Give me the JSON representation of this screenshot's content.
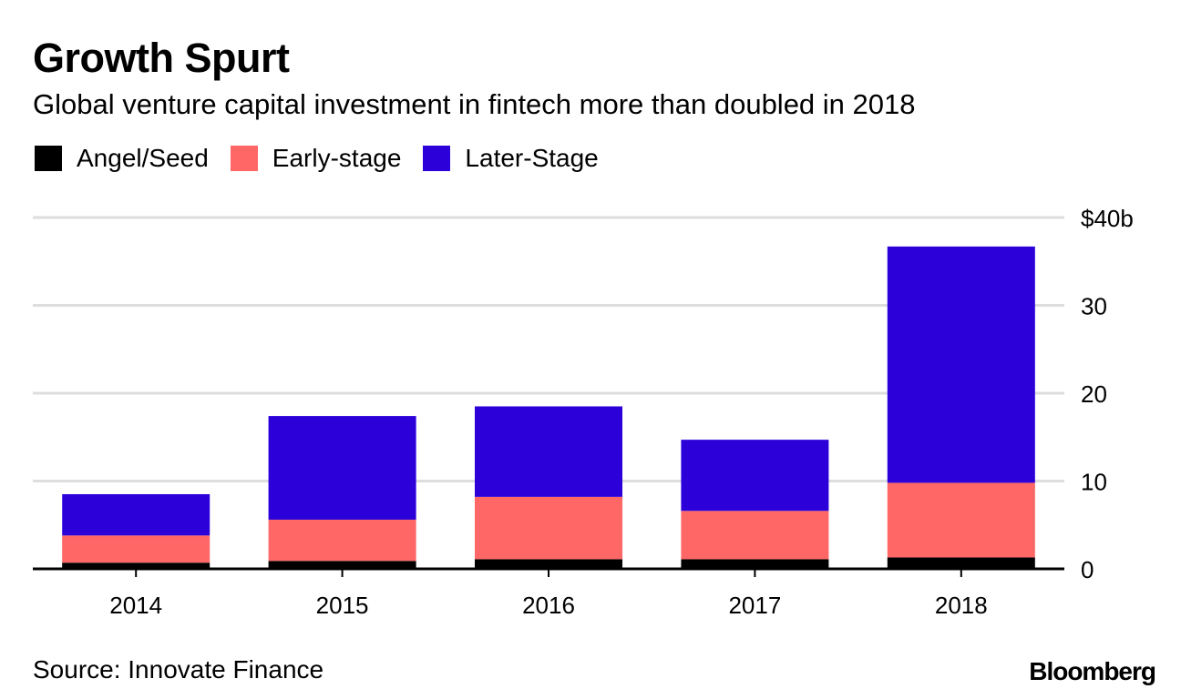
{
  "title": "Growth Spurt",
  "subtitle": "Global venture capital investment in fintech more than doubled in 2018",
  "source": "Source: Innovate Finance",
  "brand": "Bloomberg",
  "colors": {
    "angel_seed": "#000000",
    "early_stage": "#ff6666",
    "later_stage": "#2b00d9",
    "gridline": "#dddddd",
    "axis": "#000000"
  },
  "chart_data": {
    "type": "bar",
    "stacked": true,
    "categories": [
      "2014",
      "2015",
      "2016",
      "2017",
      "2018"
    ],
    "series": [
      {
        "name": "Angel/Seed",
        "color": "#000000",
        "values": [
          0.7,
          0.9,
          1.1,
          1.1,
          1.3
        ]
      },
      {
        "name": "Early-stage",
        "color": "#ff6666",
        "values": [
          3.1,
          4.7,
          7.1,
          5.5,
          8.5
        ]
      },
      {
        "name": "Later-Stage",
        "color": "#2b00d9",
        "values": [
          4.7,
          11.8,
          10.3,
          8.1,
          26.9
        ]
      }
    ],
    "ylim": [
      0,
      40
    ],
    "yticks": [
      {
        "value": 0,
        "label": "0"
      },
      {
        "value": 10,
        "label": "10"
      },
      {
        "value": 20,
        "label": "20"
      },
      {
        "value": 30,
        "label": "30"
      },
      {
        "value": 40,
        "label": "$40b"
      }
    ],
    "y_axis_side": "right",
    "grid": true,
    "legend_position": "top-left",
    "xlabel": "",
    "ylabel": ""
  }
}
